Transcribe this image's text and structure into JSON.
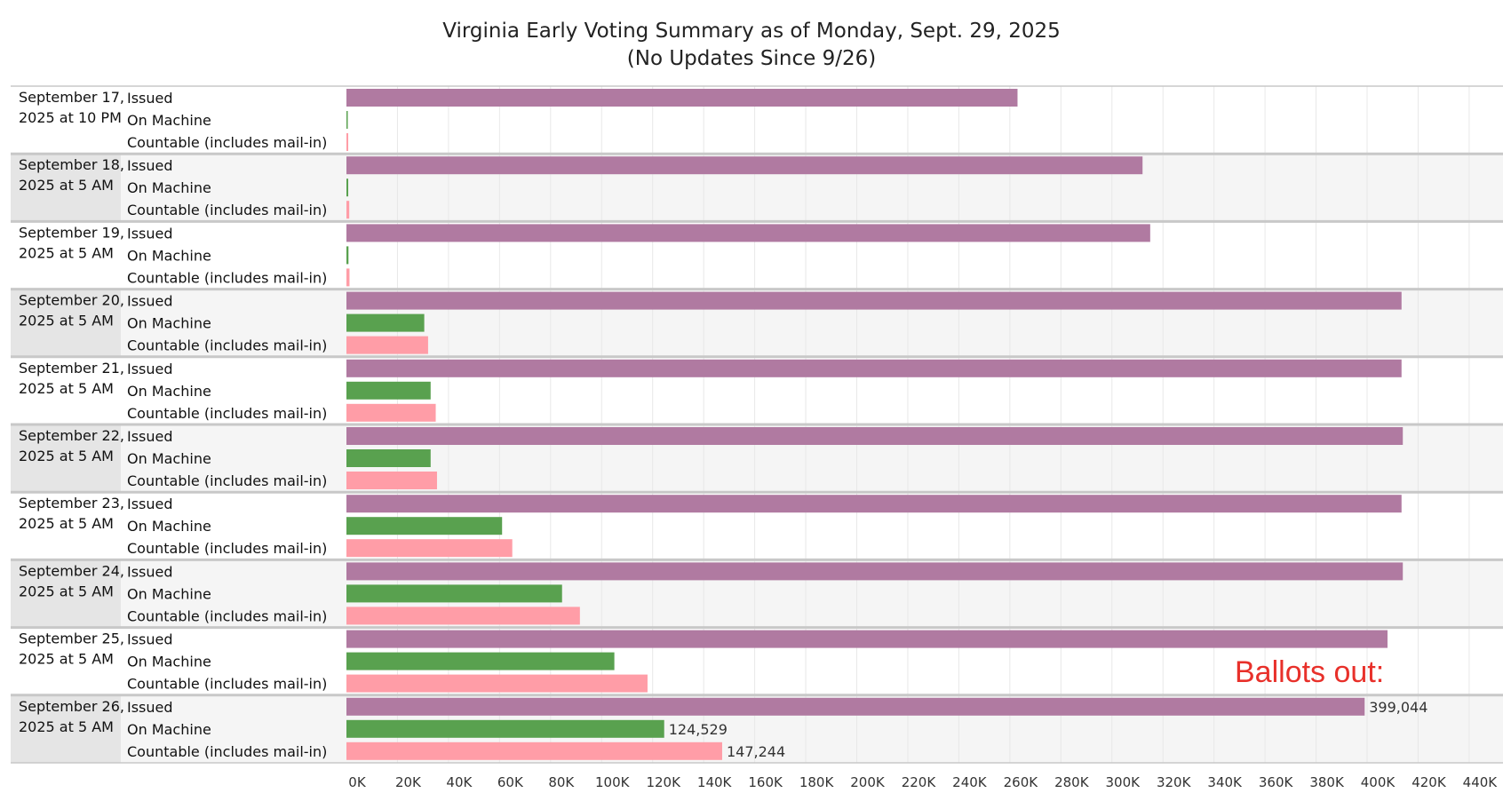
{
  "chart_data": {
    "type": "bar",
    "orientation": "horizontal",
    "title": "Virginia Early Voting Summary as of Monday, Sept. 29, 2025",
    "subtitle": "(No Updates Since 9/26)",
    "measures": [
      "Issued",
      "On Machine",
      "Countable (includes mail-in)"
    ],
    "groups": [
      {
        "line1": "September 17,",
        "line2": "2025 at 10 PM",
        "values": [
          263000,
          500,
          700
        ]
      },
      {
        "line1": "September 18,",
        "line2": "2025 at 5 AM",
        "values": [
          312000,
          700,
          1100
        ]
      },
      {
        "line1": "September 19,",
        "line2": "2025 at 5 AM",
        "values": [
          315000,
          800,
          1200
        ]
      },
      {
        "line1": "September 20,",
        "line2": "2025 at 5 AM",
        "values": [
          413500,
          30500,
          32000
        ]
      },
      {
        "line1": "September 21,",
        "line2": "2025 at 5 AM",
        "values": [
          413500,
          33000,
          35000
        ]
      },
      {
        "line1": "September 22,",
        "line2": "2025 at 5 AM",
        "values": [
          414000,
          33000,
          35500
        ]
      },
      {
        "line1": "September 23,",
        "line2": "2025 at 5 AM",
        "values": [
          413500,
          61000,
          65000
        ]
      },
      {
        "line1": "September 24,",
        "line2": "2025 at 5 AM",
        "values": [
          414000,
          84500,
          91500
        ]
      },
      {
        "line1": "September 25,",
        "line2": "2025 at 5 AM",
        "values": [
          408000,
          105000,
          118000
        ]
      },
      {
        "line1": "September 26,",
        "line2": "2025 at 5 AM",
        "values": [
          399044,
          124529,
          147244
        ]
      }
    ],
    "data_labels": [
      {
        "group": 9,
        "measure": 0,
        "text": "399,044"
      },
      {
        "group": 9,
        "measure": 1,
        "text": "124,529"
      },
      {
        "group": 9,
        "measure": 2,
        "text": "147,244"
      }
    ],
    "x_ticks": [
      "0K",
      "20K",
      "40K",
      "60K",
      "80K",
      "100K",
      "120K",
      "140K",
      "160K",
      "180K",
      "200K",
      "220K",
      "240K",
      "260K",
      "280K",
      "300K",
      "320K",
      "340K",
      "360K",
      "380K",
      "400K",
      "420K",
      "440K"
    ],
    "xlim": [
      0,
      440000
    ],
    "grid": true,
    "annotation": "Ballots out:",
    "colors": {
      "Issued": "#b07aa1",
      "On Machine": "#59a14f",
      "Countable (includes mail-in)": "#ff9da7",
      "band_shade": "#e5e5e5",
      "plot_shade": "#f5f5f5",
      "separator": "#c8c8c8",
      "gridline": "#e8e8e8",
      "annotation": "#e8302a"
    }
  }
}
